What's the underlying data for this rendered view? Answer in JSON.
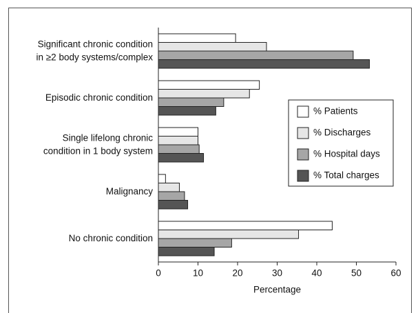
{
  "chart_data": {
    "type": "barh",
    "categories": [
      [
        "Significant chronic condition",
        "in ≥2 body systems/complex"
      ],
      [
        "Episodic chronic condition"
      ],
      [
        "Single lifelong chronic",
        "condition in 1 body system"
      ],
      [
        "Malignancy"
      ],
      [
        "No chronic condition"
      ]
    ],
    "series": [
      {
        "name": "% Patients",
        "color": "#ffffff",
        "values": [
          19.5,
          25.5,
          10,
          1.8,
          43.9
        ]
      },
      {
        "name": "% Discharges",
        "color": "#e6e6e6",
        "values": [
          27.3,
          23,
          10,
          5.3,
          35.4
        ]
      },
      {
        "name": "% Hospital days",
        "color": "#a6a6a6",
        "values": [
          49.2,
          16.5,
          10.3,
          6.6,
          18.5
        ]
      },
      {
        "name": "% Total charges",
        "color": "#555555",
        "values": [
          53.3,
          14.5,
          11.4,
          7.4,
          14.1
        ]
      }
    ],
    "xlabel": "Percentage",
    "xlim": [
      0,
      60
    ],
    "xticks": [
      0,
      10,
      20,
      30,
      40,
      50,
      60
    ],
    "legend": "right"
  }
}
